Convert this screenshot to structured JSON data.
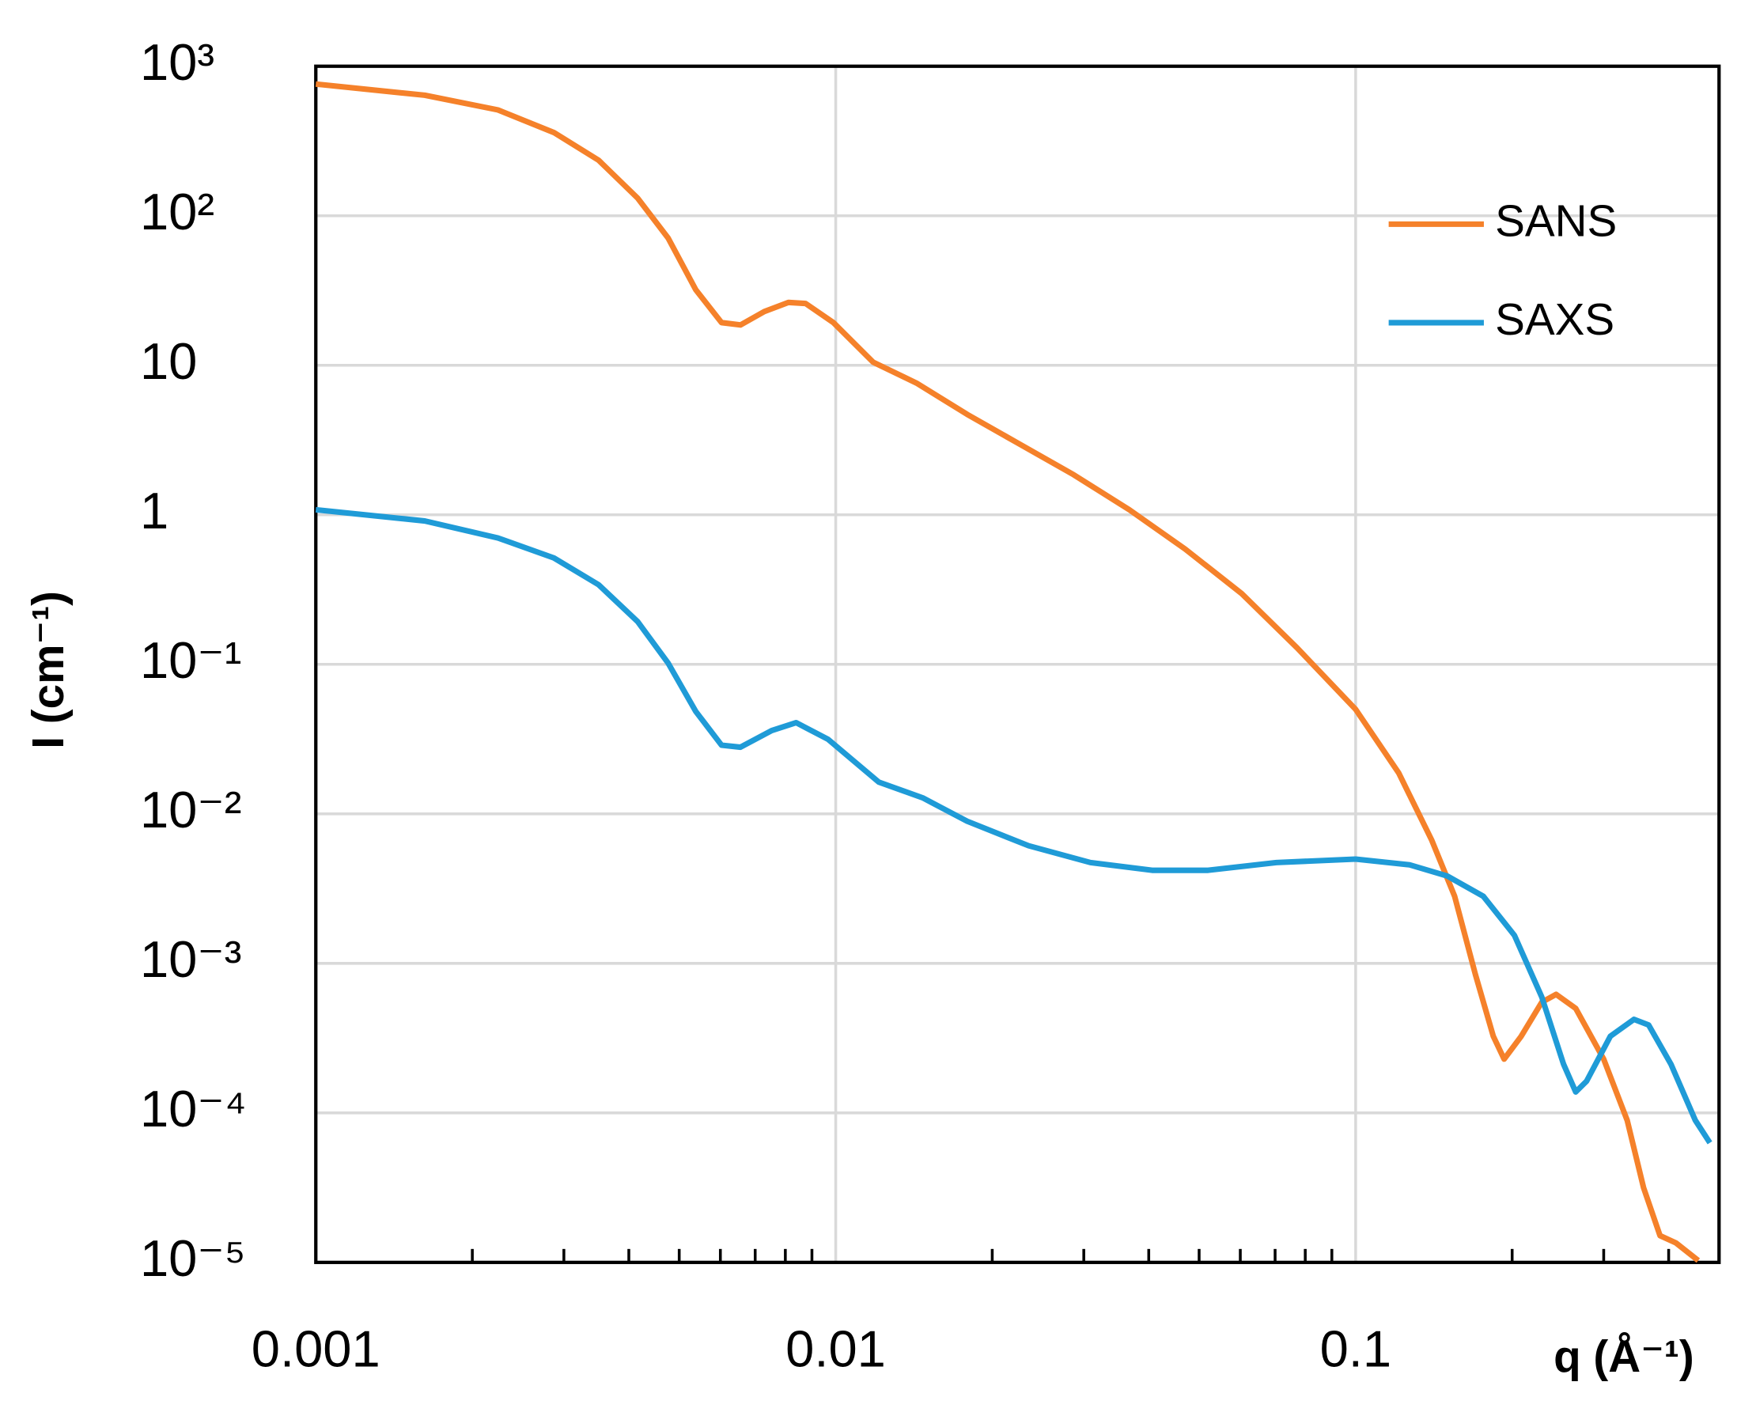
{
  "chart_data": {
    "type": "line",
    "xscale": "log",
    "yscale": "log",
    "grid": true,
    "legend": "upper right",
    "xlabel": "q (Å⁻¹)",
    "ylabel": "I (cm⁻¹)",
    "xlim": [
      0.001,
      0.5
    ],
    "ylim": [
      1e-05,
      1000
    ],
    "xticks": [
      0.001,
      0.01,
      0.1
    ],
    "yticks": [
      {
        "value": 1e-05,
        "label": "10⁻⁵"
      },
      {
        "value": 0.0001,
        "label": "10⁻⁴"
      },
      {
        "value": 0.001,
        "label": "10⁻³"
      },
      {
        "value": 0.01,
        "label": "10⁻²"
      },
      {
        "value": 0.1,
        "label": "10⁻¹"
      },
      1,
      10,
      {
        "value": 100,
        "label": "10²"
      },
      {
        "value": 1000,
        "label": "10³"
      }
    ],
    "series": [
      {
        "name": "SANS",
        "color": "#f5812a",
        "x": [
          0.001,
          0.00162,
          0.00224,
          0.00287,
          0.0035,
          0.00416,
          0.00476,
          0.00538,
          0.00603,
          0.00656,
          0.00729,
          0.00811,
          0.00875,
          0.0099,
          0.0118,
          0.0143,
          0.0179,
          0.0223,
          0.0287,
          0.0367,
          0.047,
          0.0604,
          0.0771,
          0.1,
          0.121,
          0.14,
          0.155,
          0.17,
          0.184,
          0.193,
          0.208,
          0.228,
          0.243,
          0.265,
          0.3,
          0.333,
          0.358,
          0.385,
          0.413,
          0.456
        ],
        "values": [
          760,
          640,
          510,
          360,
          235,
          131,
          71,
          32,
          19.3,
          18.6,
          22.9,
          26.3,
          25.9,
          19.3,
          10.5,
          7.6,
          4.7,
          3.04,
          1.85,
          1.08,
          0.59,
          0.297,
          0.129,
          0.05,
          0.0188,
          0.0067,
          0.00281,
          0.00084,
          0.000326,
          0.000229,
          0.000324,
          0.00055,
          0.00062,
          0.0005,
          0.000229,
          8.91e-05,
          3.16e-05,
          1.51e-05,
          1.35e-05,
          1.03e-05
        ]
      },
      {
        "name": "SAXS",
        "color": "#1f9bd7",
        "x": [
          0.001,
          0.00162,
          0.00224,
          0.00287,
          0.0035,
          0.00416,
          0.00476,
          0.00538,
          0.00603,
          0.00656,
          0.00753,
          0.00839,
          0.00967,
          0.0121,
          0.0147,
          0.0179,
          0.0235,
          0.0309,
          0.0406,
          0.052,
          0.0704,
          0.1,
          0.127,
          0.15,
          0.176,
          0.202,
          0.228,
          0.251,
          0.265,
          0.278,
          0.309,
          0.343,
          0.366,
          0.404,
          0.45,
          0.48
        ],
        "values": [
          1.08,
          0.91,
          0.7,
          0.515,
          0.34,
          0.193,
          0.102,
          0.0484,
          0.0288,
          0.0279,
          0.0361,
          0.0407,
          0.0315,
          0.0163,
          0.0128,
          0.00893,
          0.00612,
          0.00472,
          0.00419,
          0.00419,
          0.00472,
          0.00498,
          0.00456,
          0.00384,
          0.00281,
          0.00154,
          0.000596,
          0.000212,
          0.000138,
          0.000163,
          0.000326,
          0.000422,
          0.000387,
          0.000212,
          8.93e-05,
          6.31e-05
        ]
      }
    ]
  }
}
